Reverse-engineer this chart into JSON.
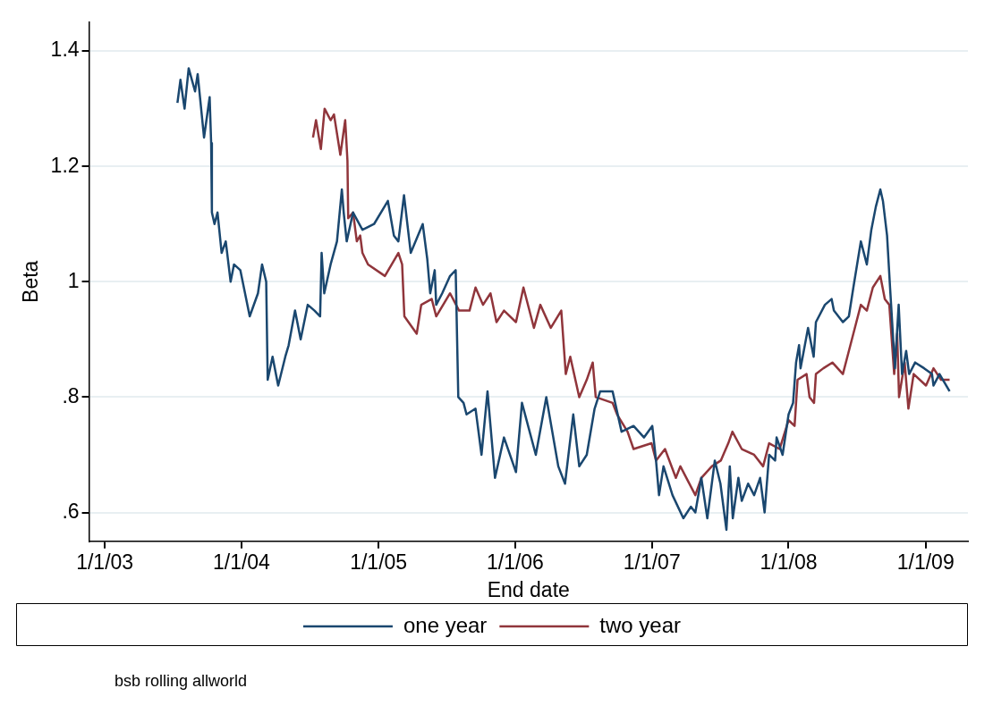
{
  "chart_data": {
    "type": "line",
    "xlabel": "End date",
    "ylabel": "Beta",
    "annotations": [
      "bsb rolling allworld"
    ],
    "xlim": [
      "2002-11-20",
      "2009-04-24"
    ],
    "ylim": [
      0.55,
      1.45
    ],
    "xticks": [
      {
        "value": "2003-01-01",
        "label": "1/1/03"
      },
      {
        "value": "2004-01-01",
        "label": "1/1/04"
      },
      {
        "value": "2005-01-01",
        "label": "1/1/05"
      },
      {
        "value": "2006-01-01",
        "label": "1/1/06"
      },
      {
        "value": "2007-01-01",
        "label": "1/1/07"
      },
      {
        "value": "2008-01-01",
        "label": "1/1/08"
      },
      {
        "value": "2009-01-01",
        "label": "1/1/09"
      }
    ],
    "yticks": [
      {
        "value": 0.6,
        "label": ".6"
      },
      {
        "value": 0.8,
        "label": ".8"
      },
      1,
      1.2,
      1.4
    ],
    "grid": "y",
    "legend": "bottom",
    "marker": "none",
    "line_style": "solid",
    "series": [
      {
        "name": "one year",
        "color": "#1a476f",
        "x": [
          "2003-07-14",
          "2003-07-22",
          "2003-08-02",
          "2003-08-13",
          "2003-08-30",
          "2003-09-06",
          "2003-09-23",
          "2003-10-08",
          "2003-10-12",
          "2003-10-14",
          "2003-10-21",
          "2003-10-29",
          "2003-11-09",
          "2003-11-20",
          "2003-12-03",
          "2003-12-12",
          "2003-12-29",
          "2004-01-23",
          "2004-02-14",
          "2004-02-25",
          "2004-03-07",
          "2004-03-11",
          "2004-03-24",
          "2004-04-08",
          "2004-04-27",
          "2004-05-06",
          "2004-05-23",
          "2004-06-07",
          "2004-06-26",
          "2004-07-14",
          "2004-07-29",
          "2004-08-02",
          "2004-08-09",
          "2004-08-26",
          "2004-09-12",
          "2004-09-25",
          "2004-09-30",
          "2004-10-08",
          "2004-10-25",
          "2004-11-19",
          "2004-12-20",
          "2005-01-26",
          "2005-02-11",
          "2005-02-23",
          "2005-03-10",
          "2005-03-28",
          "2005-04-29",
          "2005-05-11",
          "2005-05-19",
          "2005-05-31",
          "2005-06-04",
          "2005-06-20",
          "2005-07-11",
          "2005-07-26",
          "2005-08-02",
          "2005-08-16",
          "2005-08-24",
          "2005-09-17",
          "2005-10-03",
          "2005-10-19",
          "2005-11-08",
          "2005-12-02",
          "2006-01-03",
          "2006-01-19",
          "2006-02-25",
          "2006-03-25",
          "2006-04-26",
          "2006-05-14",
          "2006-06-05",
          "2006-06-21",
          "2006-07-11",
          "2006-08-01",
          "2006-08-16",
          "2006-09-18",
          "2006-10-12",
          "2006-11-13",
          "2006-12-11",
          "2007-01-02",
          "2007-01-12",
          "2007-01-20",
          "2007-02-01",
          "2007-02-25",
          "2007-03-26",
          "2007-04-15",
          "2007-04-27",
          "2007-05-13",
          "2007-05-29",
          "2007-06-18",
          "2007-07-03",
          "2007-07-19",
          "2007-07-28",
          "2007-08-05",
          "2007-08-20",
          "2007-08-29",
          "2007-09-15",
          "2007-10-01",
          "2007-10-17",
          "2007-10-29",
          "2007-11-10",
          "2007-11-26",
          "2007-11-30",
          "2007-12-16",
          "2008-01-01",
          "2008-01-13",
          "2008-01-21",
          "2008-01-29",
          "2008-02-02",
          "2008-02-22",
          "2008-03-08",
          "2008-03-14",
          "2008-04-07",
          "2008-04-25",
          "2008-05-01",
          "2008-05-25",
          "2008-06-10",
          "2008-06-22",
          "2008-07-12",
          "2008-07-28",
          "2008-08-09",
          "2008-08-21",
          "2008-09-02",
          "2008-09-09",
          "2008-09-20",
          "2008-09-28",
          "2008-10-11",
          "2008-10-21",
          "2008-10-30",
          "2008-11-10",
          "2008-11-18",
          "2008-12-04",
          "2008-12-28",
          "2009-01-18",
          "2009-01-22",
          "2009-02-07",
          "2009-03-06"
        ],
        "values": [
          1.31,
          1.35,
          1.3,
          1.37,
          1.33,
          1.36,
          1.25,
          1.32,
          1.24,
          1.12,
          1.1,
          1.12,
          1.05,
          1.07,
          1.0,
          1.03,
          1.02,
          0.94,
          0.98,
          1.03,
          1.0,
          0.83,
          0.87,
          0.82,
          0.87,
          0.89,
          0.95,
          0.9,
          0.96,
          0.95,
          0.94,
          1.05,
          0.98,
          1.03,
          1.07,
          1.16,
          1.12,
          1.07,
          1.12,
          1.09,
          1.1,
          1.14,
          1.08,
          1.07,
          1.15,
          1.05,
          1.1,
          1.04,
          0.98,
          1.02,
          0.96,
          0.98,
          1.01,
          1.02,
          0.8,
          0.79,
          0.77,
          0.78,
          0.7,
          0.81,
          0.66,
          0.73,
          0.67,
          0.79,
          0.7,
          0.8,
          0.68,
          0.65,
          0.77,
          0.68,
          0.7,
          0.78,
          0.81,
          0.81,
          0.74,
          0.75,
          0.73,
          0.75,
          0.69,
          0.63,
          0.68,
          0.63,
          0.59,
          0.61,
          0.6,
          0.66,
          0.59,
          0.69,
          0.65,
          0.57,
          0.68,
          0.59,
          0.66,
          0.62,
          0.65,
          0.63,
          0.66,
          0.6,
          0.7,
          0.69,
          0.73,
          0.7,
          0.77,
          0.79,
          0.86,
          0.89,
          0.85,
          0.92,
          0.87,
          0.93,
          0.96,
          0.97,
          0.95,
          0.93,
          0.94,
          0.99,
          1.07,
          1.03,
          1.09,
          1.13,
          1.16,
          1.14,
          1.08,
          0.99,
          0.85,
          0.96,
          0.84,
          0.88,
          0.84,
          0.86,
          0.85,
          0.84,
          0.82,
          0.84,
          0.81
        ]
      },
      {
        "name": "two year",
        "color": "#90353b",
        "x": [
          "2004-07-10",
          "2004-07-18",
          "2004-07-31",
          "2004-08-10",
          "2004-08-26",
          "2004-09-04",
          "2004-09-21",
          "2004-10-04",
          "2004-10-10",
          "2004-10-12",
          "2004-10-25",
          "2004-11-04",
          "2004-11-13",
          "2004-11-19",
          "2004-12-04",
          "2005-01-18",
          "2005-02-23",
          "2005-03-05",
          "2005-03-11",
          "2005-04-13",
          "2005-04-25",
          "2005-05-23",
          "2005-06-04",
          "2005-07-11",
          "2005-08-04",
          "2005-09-01",
          "2005-09-17",
          "2005-10-07",
          "2005-10-27",
          "2005-11-12",
          "2005-12-02",
          "2006-01-03",
          "2006-01-23",
          "2006-02-20",
          "2006-03-09",
          "2006-04-06",
          "2006-05-04",
          "2006-05-16",
          "2006-05-28",
          "2006-06-21",
          "2006-07-11",
          "2006-07-27",
          "2006-08-04",
          "2006-09-18",
          "2006-09-30",
          "2006-10-28",
          "2006-11-13",
          "2006-12-31",
          "2007-01-12",
          "2007-02-05",
          "2007-03-06",
          "2007-03-18",
          "2007-04-27",
          "2007-05-13",
          "2007-06-10",
          "2007-07-04",
          "2007-07-24",
          "2007-08-04",
          "2007-08-29",
          "2007-10-01",
          "2007-10-25",
          "2007-11-10",
          "2007-12-08",
          "2008-01-01",
          "2008-01-17",
          "2008-01-25",
          "2008-02-18",
          "2008-02-26",
          "2008-03-09",
          "2008-03-14",
          "2008-04-03",
          "2008-04-27",
          "2008-05-25",
          "2008-06-06",
          "2008-06-30",
          "2008-07-12",
          "2008-07-28",
          "2008-08-13",
          "2008-09-02",
          "2008-09-14",
          "2008-09-26",
          "2008-10-09",
          "2008-10-17",
          "2008-10-22",
          "2008-11-06",
          "2008-11-16",
          "2008-11-30",
          "2009-01-02",
          "2009-01-22",
          "2009-02-11",
          "2009-03-06"
        ],
        "values": [
          1.25,
          1.28,
          1.23,
          1.3,
          1.28,
          1.29,
          1.22,
          1.28,
          1.21,
          1.11,
          1.12,
          1.07,
          1.08,
          1.05,
          1.03,
          1.01,
          1.05,
          1.03,
          0.94,
          0.91,
          0.96,
          0.97,
          0.94,
          0.98,
          0.95,
          0.95,
          0.99,
          0.96,
          0.98,
          0.93,
          0.95,
          0.93,
          0.99,
          0.92,
          0.96,
          0.92,
          0.95,
          0.84,
          0.87,
          0.8,
          0.83,
          0.86,
          0.8,
          0.79,
          0.77,
          0.74,
          0.71,
          0.72,
          0.69,
          0.71,
          0.66,
          0.68,
          0.63,
          0.66,
          0.68,
          0.69,
          0.72,
          0.74,
          0.71,
          0.7,
          0.68,
          0.72,
          0.71,
          0.76,
          0.75,
          0.83,
          0.84,
          0.8,
          0.79,
          0.84,
          0.85,
          0.86,
          0.84,
          0.87,
          0.93,
          0.96,
          0.95,
          0.99,
          1.01,
          0.97,
          0.96,
          0.84,
          0.91,
          0.8,
          0.86,
          0.78,
          0.84,
          0.82,
          0.85,
          0.83,
          0.83
        ]
      }
    ]
  }
}
